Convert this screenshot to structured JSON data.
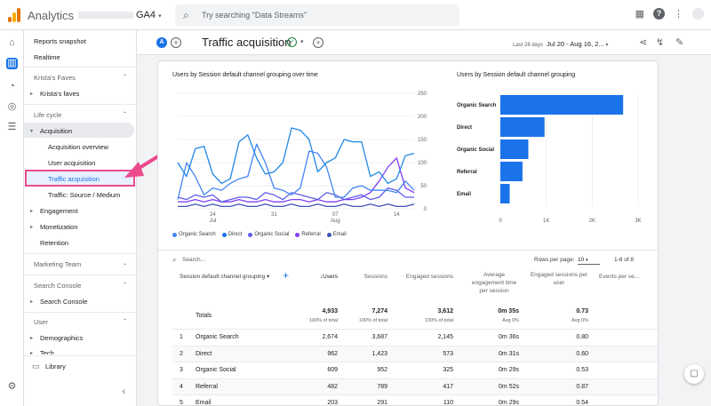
{
  "header": {
    "app_name": "Analytics",
    "account_suffix": "GA4",
    "search_placeholder": "Try searching \"Data Streams\"",
    "help_label": "?",
    "more_label": "⋮"
  },
  "rail": {
    "icons": [
      "home-icon",
      "reports-icon",
      "explore-icon",
      "advertising-icon",
      "configure-icon",
      "settings-icon"
    ]
  },
  "sidebar": {
    "reports_snapshot": "Reports snapshot",
    "realtime": "Realtime",
    "kristas_faves_group": "Krista's Faves",
    "kristas_faves_item": "Krista's faves",
    "lifecycle_group": "Life cycle",
    "acquisition": "Acquisition",
    "acquisition_overview": "Acquisition overview",
    "user_acquisition": "User acquisition",
    "traffic_acquisition": "Traffic acquisition",
    "traffic_source_medium": "Traffic: Source / Medium",
    "engagement": "Engagement",
    "monetization": "Monetization",
    "retention": "Retention",
    "marketing_team_group": "Marketing Team",
    "search_console_group": "Search Console",
    "search_console_item": "Search Console",
    "user_group": "User",
    "demographics": "Demographics",
    "tech": "Tech",
    "library": "Library"
  },
  "toolbar": {
    "comparison_chip": "A",
    "title": "Traffic acquisition",
    "date_label": "Last 28 days",
    "date_range": "Jul 20 - Aug 16, 2..."
  },
  "line_chart_title": "Users by Session default channel grouping over time",
  "bar_chart_title": "Users by Session default channel grouping",
  "legend": [
    {
      "name": "Organic Search",
      "color": "#4285f4"
    },
    {
      "name": "Direct",
      "color": "#1a73e8"
    },
    {
      "name": "Organic Social",
      "color": "#5e5ce6"
    },
    {
      "name": "Referral",
      "color": "#7e3ff2"
    },
    {
      "name": "Email",
      "color": "#3f51b5"
    }
  ],
  "chart_data": [
    {
      "type": "line",
      "title": "Users by Session default channel grouping over time",
      "x": [
        "Jul 20",
        "Jul 21",
        "Jul 22",
        "Jul 23",
        "Jul 24",
        "Jul 25",
        "Jul 26",
        "Jul 27",
        "Jul 28",
        "Jul 29",
        "Jul 30",
        "Jul 31",
        "Aug 1",
        "Aug 2",
        "Aug 3",
        "Aug 4",
        "Aug 5",
        "Aug 6",
        "Aug 7",
        "Aug 8",
        "Aug 9",
        "Aug 10",
        "Aug 11",
        "Aug 12",
        "Aug 13",
        "Aug 14",
        "Aug 15",
        "Aug 16"
      ],
      "x_tick_labels": [
        "24 Jul",
        "31",
        "07 Aug",
        "14"
      ],
      "ylim": [
        0,
        250
      ],
      "y_ticks": [
        0,
        50,
        100,
        150,
        200,
        250
      ],
      "series": [
        {
          "name": "Organic Search",
          "color": "#1e88e5",
          "values": [
            100,
            70,
            130,
            135,
            75,
            55,
            65,
            145,
            160,
            110,
            75,
            80,
            100,
            175,
            170,
            150,
            80,
            100,
            110,
            150,
            145,
            145,
            70,
            80,
            55,
            65,
            115,
            120
          ]
        },
        {
          "name": "Direct",
          "color": "#4285f4",
          "values": [
            20,
            100,
            70,
            30,
            45,
            40,
            55,
            65,
            70,
            140,
            100,
            45,
            40,
            30,
            45,
            125,
            120,
            90,
            25,
            25,
            45,
            50,
            40,
            40,
            40,
            35,
            60,
            40
          ]
        },
        {
          "name": "Organic Social",
          "color": "#5e5ce6",
          "values": [
            25,
            20,
            30,
            25,
            30,
            15,
            20,
            25,
            25,
            20,
            35,
            30,
            20,
            35,
            30,
            25,
            20,
            35,
            30,
            20,
            25,
            30,
            20,
            25,
            45,
            40,
            25,
            25
          ]
        },
        {
          "name": "Referral",
          "color": "#7e3ff2",
          "values": [
            15,
            15,
            20,
            15,
            20,
            15,
            15,
            20,
            15,
            15,
            20,
            15,
            15,
            20,
            20,
            15,
            20,
            15,
            15,
            20,
            20,
            25,
            35,
            60,
            90,
            110,
            45,
            35
          ]
        },
        {
          "name": "Email",
          "color": "#3f51b5",
          "values": [
            5,
            5,
            10,
            5,
            10,
            5,
            5,
            10,
            5,
            5,
            10,
            5,
            5,
            10,
            5,
            5,
            10,
            5,
            5,
            10,
            5,
            5,
            10,
            5,
            10,
            5,
            5,
            10
          ]
        }
      ]
    },
    {
      "type": "bar",
      "orientation": "horizontal",
      "title": "Users by Session default channel grouping",
      "categories": [
        "Organic Search",
        "Direct",
        "Organic Social",
        "Referral",
        "Email"
      ],
      "values": [
        2674,
        962,
        609,
        482,
        203
      ],
      "xlim": [
        0,
        3000
      ],
      "x_tick_labels": [
        "0",
        "1K",
        "2K",
        "3K"
      ],
      "color": "#1a73e8"
    }
  ],
  "table": {
    "search_placeholder": "Search...",
    "rows_per_page_label": "Rows per page:",
    "rows_per_page_value": "10",
    "pagination": "1-8 of 8",
    "dimension_header": "Session default channel grouping",
    "columns": [
      "↓Users",
      "Sessions",
      "Engaged sessions",
      "Average engagement time per session",
      "Engaged sessions per user",
      "Events per se..."
    ],
    "totals": {
      "label": "Totals",
      "users": "4,933",
      "users_pct": "100% of total",
      "sessions": "7,274",
      "sessions_pct": "100% of total",
      "engaged": "3,612",
      "engaged_pct": "100% of total",
      "avg_time": "0m 35s",
      "avg_time_sub": "Avg 0%",
      "per_user": "0.73",
      "per_user_sub": "Avg 0%"
    },
    "rows": [
      {
        "idx": "1",
        "name": "Organic Search",
        "users": "2,674",
        "sessions": "3,687",
        "engaged": "2,145",
        "avg": "0m 36s",
        "per_user": "0.80"
      },
      {
        "idx": "2",
        "name": "Direct",
        "users": "962",
        "sessions": "1,423",
        "engaged": "573",
        "avg": "0m 31s",
        "per_user": "0.60"
      },
      {
        "idx": "3",
        "name": "Organic Social",
        "users": "609",
        "sessions": "952",
        "engaged": "325",
        "avg": "0m 29s",
        "per_user": "0.53"
      },
      {
        "idx": "4",
        "name": "Referral",
        "users": "482",
        "sessions": "789",
        "engaged": "417",
        "avg": "0m 52s",
        "per_user": "0.87"
      },
      {
        "idx": "5",
        "name": "Email",
        "users": "203",
        "sessions": "291",
        "engaged": "110",
        "avg": "0m 29s",
        "per_user": "0.54"
      }
    ]
  }
}
